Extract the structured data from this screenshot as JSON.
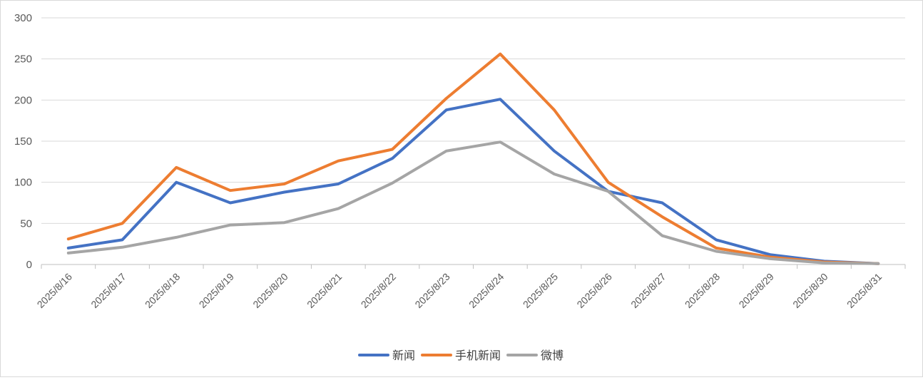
{
  "chart_data": {
    "type": "line",
    "title": "",
    "xlabel": "",
    "ylabel": "",
    "ylim": [
      0,
      300
    ],
    "yticks": [
      "0",
      "50",
      "100",
      "150",
      "200",
      "250",
      "300"
    ],
    "categories": [
      "2025/8/16",
      "2025/8/17",
      "2025/8/18",
      "2025/8/19",
      "2025/8/20",
      "2025/8/21",
      "2025/8/22",
      "2025/8/23",
      "2025/8/24",
      "2025/8/25",
      "2025/8/26",
      "2025/8/27",
      "2025/8/28",
      "2025/8/29",
      "2025/8/30",
      "2025/8/31"
    ],
    "grid": true,
    "legend_position": "bottom",
    "series": [
      {
        "name": "新闻",
        "color": "#4472C4",
        "values": [
          20,
          30,
          100,
          75,
          88,
          98,
          129,
          188,
          201,
          138,
          89,
          75,
          30,
          12,
          4,
          1
        ]
      },
      {
        "name": "手机新闻",
        "color": "#ED7D31",
        "values": [
          31,
          50,
          118,
          90,
          98,
          126,
          140,
          202,
          256,
          188,
          100,
          58,
          20,
          9,
          3,
          1
        ]
      },
      {
        "name": "微博",
        "color": "#A5A5A5",
        "values": [
          14,
          21,
          33,
          48,
          51,
          68,
          99,
          138,
          149,
          110,
          89,
          35,
          16,
          7,
          2,
          1
        ]
      }
    ]
  }
}
